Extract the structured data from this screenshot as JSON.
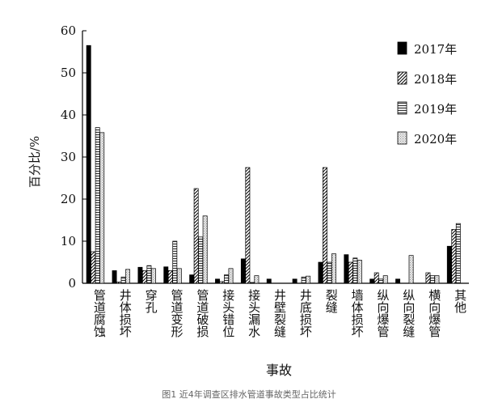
{
  "chart_data": {
    "type": "bar",
    "ylabel": "百分比/%",
    "xlabel": "事故",
    "ylim": [
      0,
      60
    ],
    "yticks": [
      0,
      10,
      20,
      30,
      40,
      50,
      60
    ],
    "legend_position": "top-right",
    "grid": false,
    "categories": [
      "管道腐蚀",
      "井体损坏",
      "穿孔",
      "管道变形",
      "管道破损",
      "接头错位",
      "接头漏水",
      "井壁裂缝",
      "井底损坏",
      "裂缝",
      "墙体损坏",
      "纵向爆管",
      "纵向裂缝",
      "横向爆管",
      "其他"
    ],
    "series": [
      {
        "name": "2017年",
        "pattern": "solid",
        "values": [
          56.5,
          3.0,
          3.8,
          3.9,
          2.0,
          1.0,
          5.8,
          1.0,
          1.0,
          5.0,
          6.8,
          1.0,
          1.0,
          0,
          8.8
        ]
      },
      {
        "name": "2018年",
        "pattern": "hatch",
        "values": [
          7.5,
          0.3,
          3.0,
          3.0,
          22.5,
          0.4,
          27.5,
          0,
          0,
          27.5,
          5.0,
          2.5,
          0,
          2.5,
          12.8
        ]
      },
      {
        "name": "2019年",
        "pattern": "hlines",
        "values": [
          37.0,
          1.5,
          4.2,
          10.0,
          11.0,
          2.0,
          0.2,
          0,
          1.5,
          5.0,
          6.0,
          1.0,
          0,
          1.8,
          14.2
        ]
      },
      {
        "name": "2020年",
        "pattern": "light",
        "values": [
          35.8,
          3.3,
          3.5,
          3.5,
          16.0,
          3.5,
          1.8,
          0,
          1.7,
          7.0,
          5.5,
          1.8,
          6.6,
          1.8,
          0
        ]
      }
    ]
  },
  "caption": "图1 近4年调查区排水管道事故类型占比统计"
}
